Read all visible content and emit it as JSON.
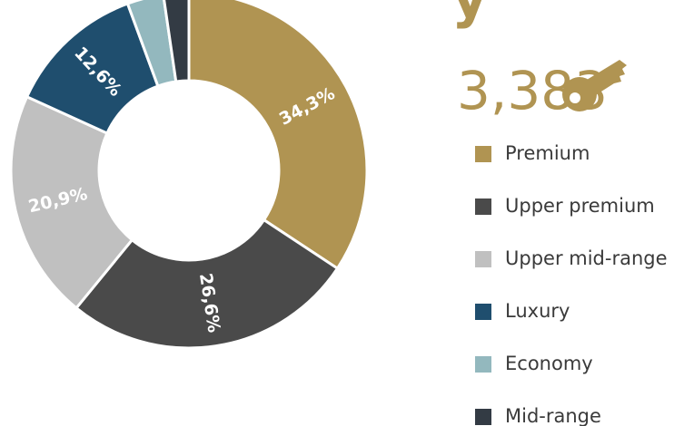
{
  "chart_data": {
    "type": "donut",
    "title": "y",
    "total": "3,383",
    "categories": [
      "Premium",
      "Upper premium",
      "Upper mid-range",
      "Luxury",
      "Economy",
      "Mid-range"
    ],
    "values": [
      34.3,
      26.6,
      20.9,
      12.6,
      3.3,
      2.3
    ],
    "value_labels": [
      "34,3%",
      "26,6%",
      "20,9%",
      "12,6%",
      null,
      null
    ],
    "colors": [
      "#b09452",
      "#4a4a4a",
      "#c0c0c0",
      "#1f4e6e",
      "#93b8be",
      "#333b44"
    ]
  }
}
